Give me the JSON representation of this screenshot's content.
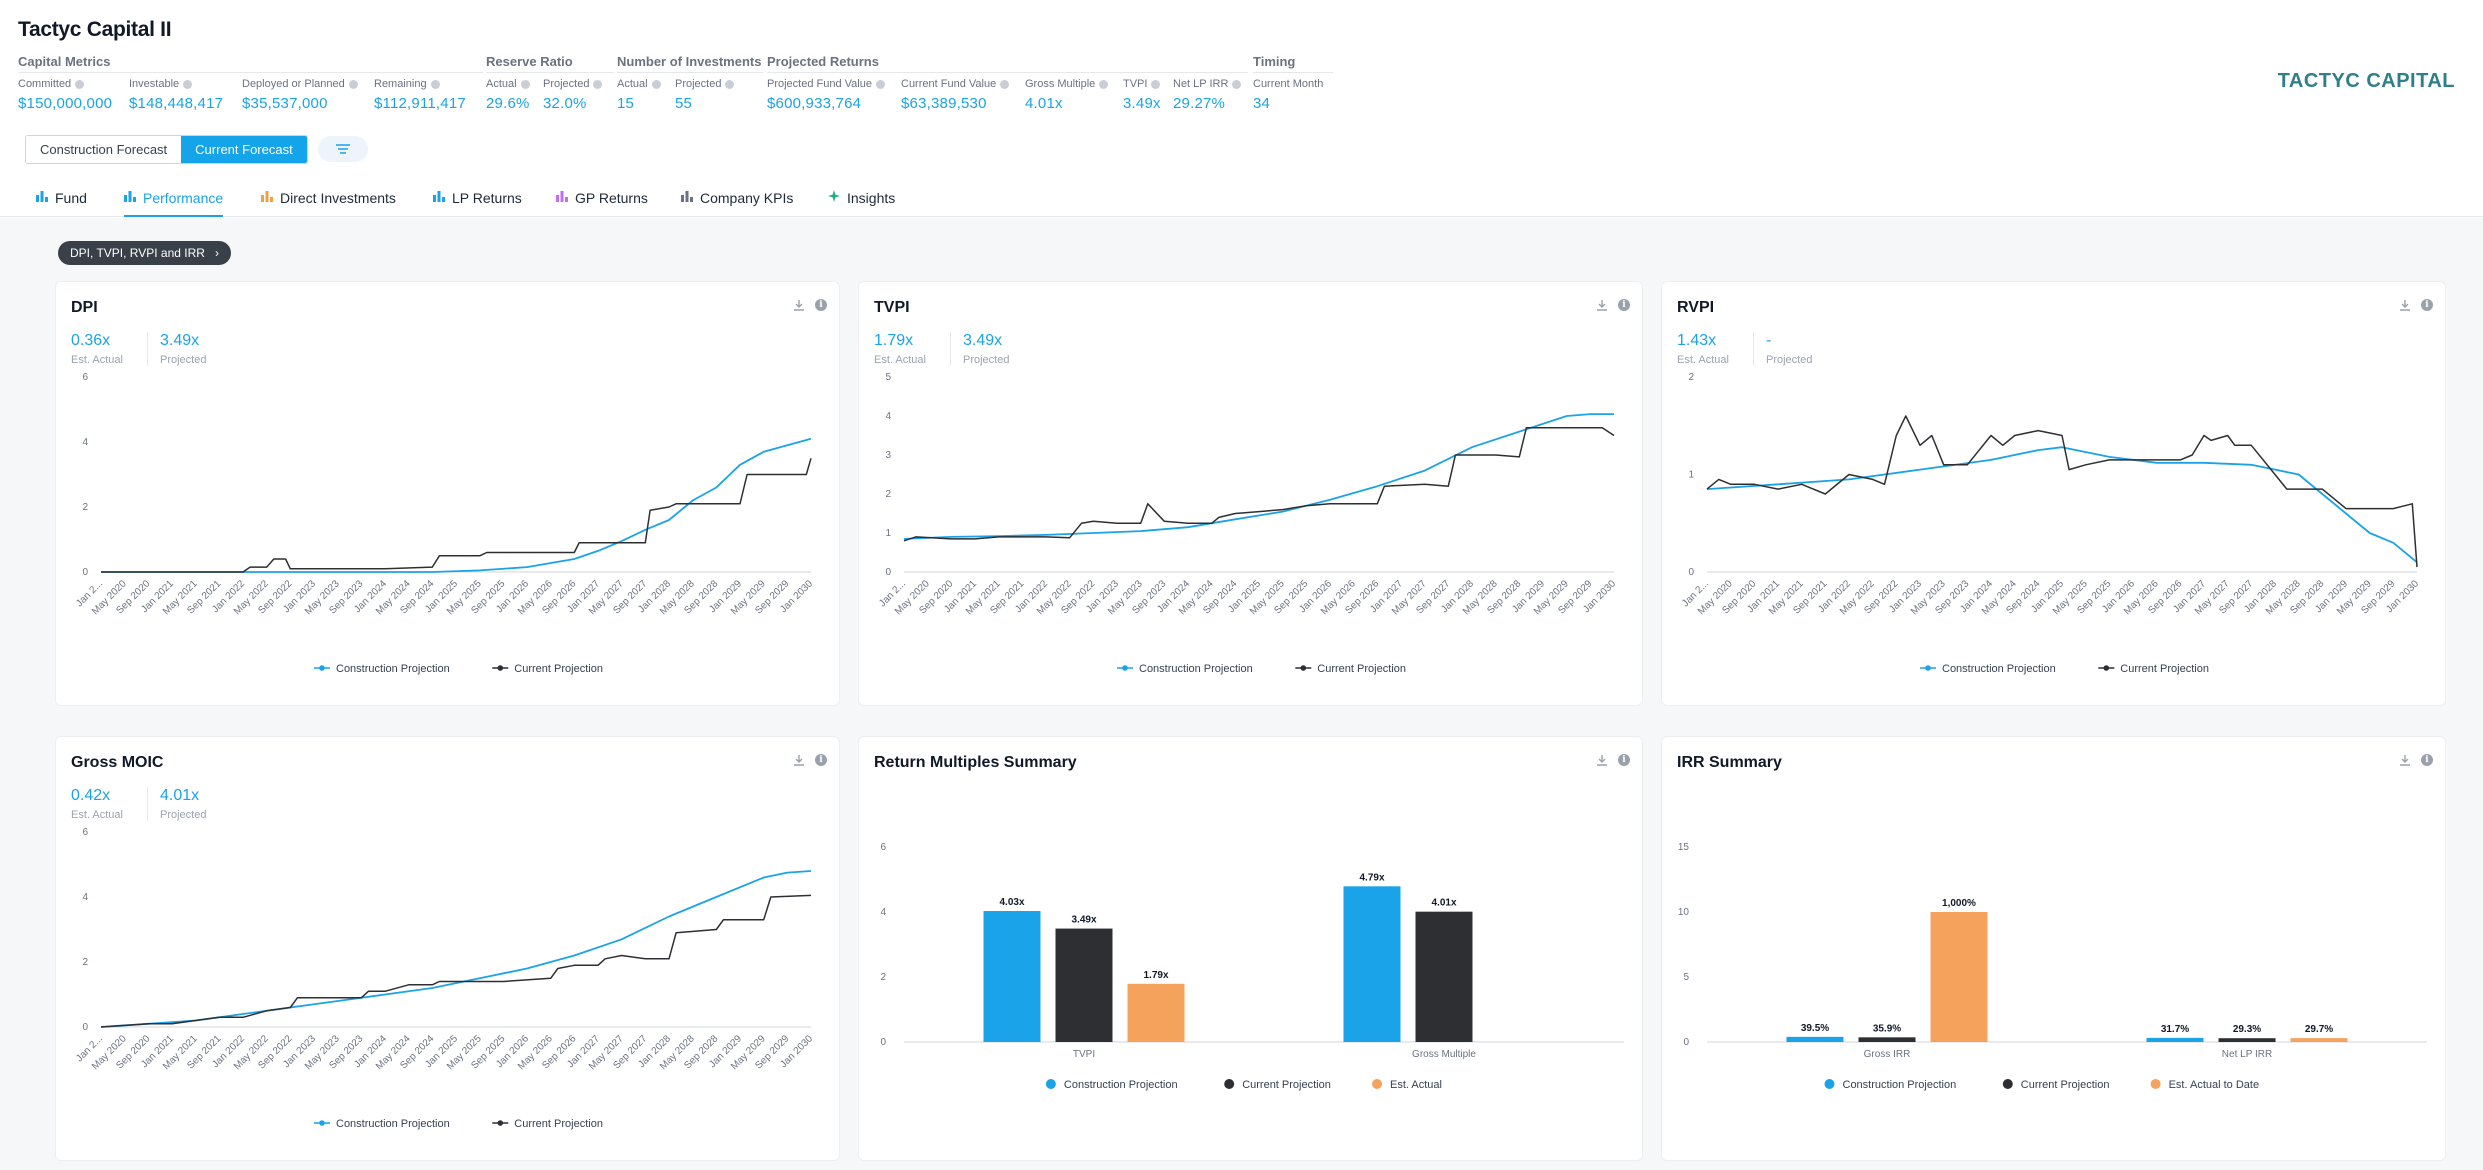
{
  "app": {
    "title": "Tactyc Capital II",
    "logo": "TACTYC CAPITAL"
  },
  "metrics": {
    "capital": {
      "title": "Capital Metrics",
      "items": [
        {
          "label": "Committed",
          "value": "$150,000,000"
        },
        {
          "label": "Investable",
          "value": "$148,448,417"
        },
        {
          "label": "Deployed or Planned",
          "value": "$35,537,000"
        },
        {
          "label": "Remaining",
          "value": "$112,911,417"
        }
      ]
    },
    "reserve": {
      "title": "Reserve Ratio",
      "items": [
        {
          "label": "Actual",
          "value": "29.6%"
        },
        {
          "label": "Projected",
          "value": "32.0%"
        }
      ]
    },
    "investments": {
      "title": "Number of Investments",
      "items": [
        {
          "label": "Actual",
          "value": "15"
        },
        {
          "label": "Projected",
          "value": "55"
        }
      ]
    },
    "returns": {
      "title": "Projected Returns",
      "items": [
        {
          "label": "Projected Fund Value",
          "value": "$600,933,764"
        },
        {
          "label": "Current Fund Value",
          "value": "$63,389,530"
        },
        {
          "label": "Gross Multiple",
          "value": "4.01x"
        },
        {
          "label": "TVPI",
          "value": "3.49x"
        },
        {
          "label": "Net LP IRR",
          "value": "29.27%"
        }
      ]
    },
    "timing": {
      "title": "Timing",
      "items": [
        {
          "label": "Current Month",
          "value": "34"
        }
      ]
    }
  },
  "forecast_toggle": {
    "construction": "Construction Forecast",
    "current": "Current Forecast",
    "selected": "Current Forecast"
  },
  "tabs": [
    {
      "label": "Fund",
      "color": "#1aa3e8"
    },
    {
      "label": "Performance",
      "color": "#1aa3e8",
      "active": true
    },
    {
      "label": "Direct Investments",
      "color": "#f59e42"
    },
    {
      "label": "LP Returns",
      "color": "#1aa3e8"
    },
    {
      "label": "GP Returns",
      "color": "#c56cf0"
    },
    {
      "label": "Company KPIs",
      "color": "#6b7280"
    },
    {
      "label": "Insights",
      "color": "#22b07d"
    }
  ],
  "section_pill": "DPI, TVPI, RVPI and IRR",
  "colors": {
    "construction": "#1aa3e8",
    "current": "#2d2f33",
    "actual": "#f5a25d"
  },
  "cards": {
    "dpi": {
      "title": "DPI",
      "kpis": [
        {
          "value": "0.36x",
          "label": "Est. Actual"
        },
        {
          "value": "3.49x",
          "label": "Projected"
        }
      ]
    },
    "tvpi": {
      "title": "TVPI",
      "kpis": [
        {
          "value": "1.79x",
          "label": "Est. Actual"
        },
        {
          "value": "3.49x",
          "label": "Projected"
        }
      ]
    },
    "rvpi": {
      "title": "RVPI",
      "kpis": [
        {
          "value": "1.43x",
          "label": "Est. Actual"
        },
        {
          "value": "-",
          "label": "Projected"
        }
      ]
    },
    "moic": {
      "title": "Gross MOIC",
      "kpis": [
        {
          "value": "0.42x",
          "label": "Est. Actual"
        },
        {
          "value": "4.01x",
          "label": "Projected"
        }
      ]
    },
    "rms": {
      "title": "Return Multiples Summary"
    },
    "irr": {
      "title": "IRR Summary"
    }
  },
  "chart_data": [
    {
      "id": "dpi",
      "type": "line",
      "ylim": [
        0,
        6
      ],
      "yticks": [
        0,
        2,
        4,
        6
      ],
      "xticks": [
        "Jan 2...",
        "May 2020",
        "Sep 2020",
        "Jan 2021",
        "May 2021",
        "Sep 2021",
        "Jan 2022",
        "May 2022",
        "Sep 2022",
        "Jan 2023",
        "May 2023",
        "Sep 2023",
        "Jan 2024",
        "May 2024",
        "Sep 2024",
        "Jan 2025",
        "May 2025",
        "Sep 2025",
        "Jan 2026",
        "May 2026",
        "Sep 2026",
        "Jan 2027",
        "May 2027",
        "Sep 2027",
        "Jan 2028",
        "May 2028",
        "Sep 2028",
        "Jan 2029",
        "May 2029",
        "Sep 2029",
        "Jan 2030"
      ],
      "legend": [
        "Construction Projection",
        "Current Projection"
      ],
      "series": [
        {
          "name": "Construction Projection",
          "x": [
            0,
            7,
            14,
            16,
            18,
            20,
            21,
            22,
            23,
            24,
            25,
            26,
            27,
            28,
            30
          ],
          "values": [
            0,
            0,
            0,
            0.05,
            0.15,
            0.4,
            0.65,
            0.95,
            1.3,
            1.6,
            2.2,
            2.6,
            3.3,
            3.7,
            4.1
          ]
        },
        {
          "name": "Current Projection",
          "x": [
            0,
            6,
            6.3,
            7,
            7.3,
            7.8,
            8,
            9,
            12,
            14,
            14.3,
            15,
            16,
            16.3,
            18,
            20,
            20.2,
            21,
            22,
            23,
            23.2,
            24,
            24.3,
            25,
            26,
            27,
            27.3,
            29,
            29.3,
            29.8,
            30
          ],
          "values": [
            0,
            0,
            0.15,
            0.15,
            0.4,
            0.4,
            0.1,
            0.1,
            0.1,
            0.15,
            0.5,
            0.5,
            0.5,
            0.6,
            0.6,
            0.6,
            0.9,
            0.9,
            0.9,
            0.9,
            1.9,
            2.0,
            2.1,
            2.1,
            2.1,
            2.1,
            3.0,
            3.0,
            3.0,
            3.0,
            3.5
          ]
        }
      ]
    },
    {
      "id": "tvpi",
      "type": "line",
      "ylim": [
        0,
        5
      ],
      "yticks": [
        0,
        1,
        2,
        3,
        4,
        5
      ],
      "xticks": [
        "Jan 2...",
        "May 2020",
        "Sep 2020",
        "Jan 2021",
        "May 2021",
        "Sep 2021",
        "Jan 2022",
        "May 2022",
        "Sep 2022",
        "Jan 2023",
        "May 2023",
        "Sep 2023",
        "Jan 2024",
        "May 2024",
        "Sep 2024",
        "Jan 2025",
        "May 2025",
        "Sep 2025",
        "Jan 2026",
        "May 2026",
        "Sep 2026",
        "Jan 2027",
        "May 2027",
        "Sep 2027",
        "Jan 2028",
        "May 2028",
        "Sep 2028",
        "Jan 2029",
        "May 2029",
        "Sep 2029",
        "Jan 2030"
      ],
      "legend": [
        "Construction Projection",
        "Current Projection"
      ],
      "series": [
        {
          "name": "Construction Projection",
          "x": [
            0,
            2,
            4,
            6,
            8,
            10,
            12,
            14,
            16,
            18,
            20,
            22,
            24,
            26,
            28,
            29,
            30
          ],
          "values": [
            0.85,
            0.9,
            0.92,
            0.95,
            1.0,
            1.05,
            1.15,
            1.35,
            1.55,
            1.85,
            2.2,
            2.6,
            3.2,
            3.6,
            4.0,
            4.05,
            4.05
          ]
        },
        {
          "name": "Current Projection",
          "x": [
            0,
            0.5,
            2,
            3,
            4,
            5,
            6,
            7,
            7.5,
            8,
            9,
            10,
            10.3,
            11,
            12,
            13,
            13.3,
            14,
            15,
            16,
            17,
            18,
            19,
            20,
            20.3,
            22,
            23,
            23.3,
            25,
            26,
            26.3,
            28,
            29,
            29.5,
            30
          ],
          "values": [
            0.8,
            0.9,
            0.85,
            0.85,
            0.9,
            0.9,
            0.9,
            0.88,
            1.25,
            1.3,
            1.25,
            1.25,
            1.75,
            1.3,
            1.25,
            1.25,
            1.4,
            1.5,
            1.55,
            1.6,
            1.7,
            1.75,
            1.75,
            1.75,
            2.2,
            2.25,
            2.2,
            3.0,
            3.0,
            2.95,
            3.7,
            3.7,
            3.7,
            3.7,
            3.5
          ]
        }
      ]
    },
    {
      "id": "rvpi",
      "type": "line",
      "ylim": [
        0,
        2
      ],
      "yticks": [
        0,
        1,
        2
      ],
      "xticks": [
        "Jan 2...",
        "May 2020",
        "Sep 2020",
        "Jan 2021",
        "May 2021",
        "Sep 2021",
        "Jan 2022",
        "May 2022",
        "Sep 2022",
        "Jan 2023",
        "May 2023",
        "Sep 2023",
        "Jan 2024",
        "May 2024",
        "Sep 2024",
        "Jan 2025",
        "May 2025",
        "Sep 2025",
        "Jan 2026",
        "May 2026",
        "Sep 2026",
        "Jan 2027",
        "May 2027",
        "Sep 2027",
        "Jan 2028",
        "May 2028",
        "Sep 2028",
        "Jan 2029",
        "May 2029",
        "Sep 2029",
        "Jan 2030"
      ],
      "legend": [
        "Construction Projection",
        "Current Projection"
      ],
      "series": [
        {
          "name": "Construction Projection",
          "x": [
            0,
            3,
            6,
            9,
            12,
            14,
            15,
            17,
            19,
            21,
            23,
            25,
            26,
            27,
            28,
            29,
            30
          ],
          "values": [
            0.85,
            0.9,
            0.95,
            1.05,
            1.15,
            1.25,
            1.28,
            1.18,
            1.12,
            1.12,
            1.1,
            1.0,
            0.8,
            0.6,
            0.4,
            0.3,
            0.1
          ]
        },
        {
          "name": "Current Projection",
          "x": [
            0,
            0.5,
            1,
            2,
            3,
            4,
            5,
            6,
            7,
            7.5,
            8,
            8.4,
            9,
            9.5,
            10,
            11,
            12,
            12.5,
            13,
            14,
            15,
            15.3,
            16,
            17,
            18,
            19,
            20,
            20.5,
            21,
            21.3,
            22,
            22.3,
            23,
            24,
            24.5,
            25,
            26,
            27,
            28,
            28.5,
            29,
            29.8,
            30
          ],
          "values": [
            0.85,
            0.95,
            0.9,
            0.9,
            0.85,
            0.9,
            0.8,
            1.0,
            0.95,
            0.9,
            1.4,
            1.6,
            1.3,
            1.4,
            1.1,
            1.1,
            1.4,
            1.3,
            1.4,
            1.45,
            1.4,
            1.05,
            1.1,
            1.15,
            1.15,
            1.15,
            1.15,
            1.2,
            1.4,
            1.35,
            1.4,
            1.3,
            1.3,
            1.0,
            0.85,
            0.85,
            0.85,
            0.65,
            0.65,
            0.65,
            0.65,
            0.7,
            0.05
          ]
        }
      ]
    },
    {
      "id": "moic",
      "type": "line",
      "ylim": [
        0,
        6
      ],
      "yticks": [
        0,
        2,
        4,
        6
      ],
      "xticks": [
        "Jan 2...",
        "May 2020",
        "Sep 2020",
        "Jan 2021",
        "May 2021",
        "Sep 2021",
        "Jan 2022",
        "May 2022",
        "Sep 2022",
        "Jan 2023",
        "May 2023",
        "Sep 2023",
        "Jan 2024",
        "May 2024",
        "Sep 2024",
        "Jan 2025",
        "May 2025",
        "Sep 2025",
        "Jan 2026",
        "May 2026",
        "Sep 2026",
        "Jan 2027",
        "May 2027",
        "Sep 2027",
        "Jan 2028",
        "May 2028",
        "Sep 2028",
        "Jan 2029",
        "May 2029",
        "Sep 2029",
        "Jan 2030"
      ],
      "legend": [
        "Construction Projection",
        "Current Projection"
      ],
      "series": [
        {
          "name": "Construction Projection",
          "x": [
            0,
            2,
            4,
            6,
            8,
            10,
            12,
            14,
            16,
            18,
            20,
            22,
            24,
            26,
            28,
            29,
            30
          ],
          "values": [
            0,
            0.1,
            0.2,
            0.4,
            0.6,
            0.8,
            1.0,
            1.2,
            1.5,
            1.8,
            2.2,
            2.7,
            3.4,
            4.0,
            4.6,
            4.75,
            4.8
          ]
        },
        {
          "name": "Current Projection",
          "x": [
            0,
            2,
            3,
            4,
            5,
            6,
            7,
            8,
            8.3,
            10,
            11,
            11.3,
            12,
            13,
            14,
            14.3,
            15,
            16,
            17,
            19,
            19.3,
            20,
            21,
            21.3,
            22,
            23,
            24,
            24.3,
            26,
            26.3,
            28,
            28.3,
            30
          ],
          "values": [
            0,
            0.1,
            0.1,
            0.2,
            0.3,
            0.3,
            0.5,
            0.6,
            0.9,
            0.9,
            0.9,
            1.1,
            1.1,
            1.3,
            1.3,
            1.4,
            1.4,
            1.4,
            1.4,
            1.5,
            1.8,
            1.9,
            1.9,
            2.1,
            2.2,
            2.1,
            2.1,
            2.9,
            3.0,
            3.3,
            3.3,
            4.0,
            4.05
          ]
        }
      ]
    },
    {
      "id": "rms",
      "type": "bar",
      "ylim": [
        0,
        6
      ],
      "yticks": [
        0,
        2,
        4,
        6
      ],
      "categories": [
        "TVPI",
        "Gross Multiple"
      ],
      "legend": [
        "Construction Projection",
        "Current Projection",
        "Est. Actual"
      ],
      "series": [
        {
          "name": "Construction Projection",
          "values": [
            4.03,
            4.79
          ],
          "labels": [
            "4.03x",
            "4.79x"
          ]
        },
        {
          "name": "Current Projection",
          "values": [
            3.49,
            4.01
          ],
          "labels": [
            "3.49x",
            "4.01x"
          ]
        },
        {
          "name": "Est. Actual",
          "values": [
            1.79,
            null
          ],
          "labels": [
            "1.79x",
            ""
          ]
        }
      ]
    },
    {
      "id": "irr",
      "type": "bar",
      "ylim": [
        0,
        15
      ],
      "yticks": [
        0,
        5,
        10,
        15
      ],
      "categories": [
        "Gross IRR",
        "Net LP IRR"
      ],
      "legend": [
        "Construction Projection",
        "Current Projection",
        "Est. Actual to Date"
      ],
      "series": [
        {
          "name": "Construction Projection",
          "values": [
            0.395,
            0.317
          ],
          "labels": [
            "39.5%",
            "31.7%"
          ]
        },
        {
          "name": "Current Projection",
          "values": [
            0.359,
            0.293
          ],
          "labels": [
            "35.9%",
            "29.3%"
          ]
        },
        {
          "name": "Est. Actual to Date",
          "values": [
            10.0,
            0.297
          ],
          "labels": [
            "1,000%",
            "29.7%"
          ]
        }
      ]
    }
  ]
}
